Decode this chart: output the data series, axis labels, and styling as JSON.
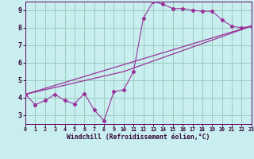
{
  "xlabel": "Windchill (Refroidissement éolien,°C)",
  "xlim": [
    0,
    23
  ],
  "ylim": [
    2.5,
    9.5
  ],
  "yticks": [
    3,
    4,
    5,
    6,
    7,
    8,
    9
  ],
  "xticks": [
    0,
    1,
    2,
    3,
    4,
    5,
    6,
    7,
    8,
    9,
    10,
    11,
    12,
    13,
    14,
    15,
    16,
    17,
    18,
    19,
    20,
    21,
    22,
    23
  ],
  "bg_color": "#c8eef0",
  "line_color": "#993399",
  "grid_color": "#99ccbb",
  "line1_x": [
    0,
    1,
    2,
    3,
    4,
    5,
    6,
    7,
    8,
    9,
    10,
    11,
    12,
    13,
    14,
    15,
    16,
    17,
    18,
    19,
    20,
    21,
    22,
    23
  ],
  "line1_y": [
    4.2,
    3.6,
    3.85,
    4.2,
    3.85,
    3.65,
    4.25,
    3.3,
    2.7,
    4.35,
    4.45,
    5.5,
    8.55,
    9.5,
    9.35,
    9.1,
    9.1,
    9.0,
    8.95,
    8.95,
    8.45,
    8.1,
    8.0,
    8.1
  ],
  "line2_x": [
    0,
    23
  ],
  "line2_y": [
    4.2,
    8.1
  ],
  "line3_x": [
    0,
    10,
    23
  ],
  "line3_y": [
    4.2,
    5.5,
    8.1
  ]
}
